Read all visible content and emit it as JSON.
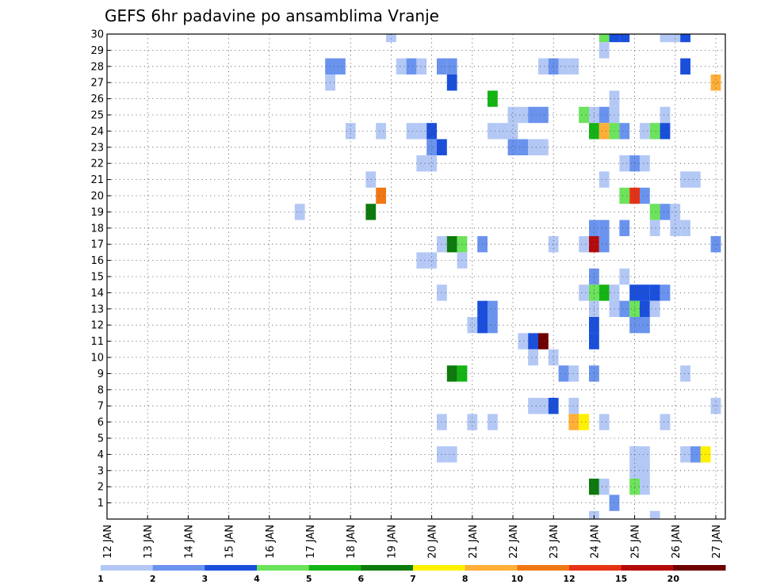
{
  "chart_data": {
    "type": "heatmap",
    "title": "GEFS 6hr padavine po ansamblima Vranje",
    "xlabel": "",
    "ylabel": "",
    "x_tick_labels": [
      "12 JAN",
      "13 JAN",
      "14 JAN",
      "15 JAN",
      "16 JAN",
      "17 JAN",
      "18 JAN",
      "19 JAN",
      "20 JAN",
      "21 JAN",
      "22 JAN",
      "23 JAN",
      "24 JAN",
      "25 JAN",
      "26 JAN",
      "27 JAN"
    ],
    "y_tick_labels": [
      "1",
      "2",
      "3",
      "4",
      "5",
      "6",
      "7",
      "8",
      "9",
      "10",
      "11",
      "12",
      "13",
      "14",
      "15",
      "16",
      "17",
      "18",
      "19",
      "20",
      "21",
      "22",
      "23",
      "24",
      "25",
      "26",
      "27",
      "28",
      "29",
      "30"
    ],
    "x_range_days": [
      12,
      27.25
    ],
    "members": 30,
    "step_hours": 6,
    "units": "mm / 6h",
    "legend_labels": [
      "1",
      "2",
      "3",
      "4",
      "5",
      "6",
      "7",
      "8",
      "10",
      "12",
      "15",
      "20"
    ],
    "color_levels": [
      {
        "level": 1,
        "color": "#b4c8f5"
      },
      {
        "level": 2,
        "color": "#6a93ee"
      },
      {
        "level": 3,
        "color": "#1a4fdc"
      },
      {
        "level": 4,
        "color": "#6be35a"
      },
      {
        "level": 5,
        "color": "#14b414"
      },
      {
        "level": 6,
        "color": "#0c7a0c"
      },
      {
        "level": 7,
        "color": "#fff000"
      },
      {
        "level": 8,
        "color": "#ffaf37"
      },
      {
        "level": 10,
        "color": "#f07814"
      },
      {
        "level": 12,
        "color": "#e63214"
      },
      {
        "level": 15,
        "color": "#b40a0a"
      },
      {
        "level": 20,
        "color": "#6e0000"
      }
    ],
    "cells": [
      {
        "m": 30,
        "t": 19.0,
        "v": 1
      },
      {
        "m": 30,
        "t": 24.25,
        "v": 4
      },
      {
        "m": 30,
        "t": 24.5,
        "v": 3
      },
      {
        "m": 30,
        "t": 24.75,
        "v": 3
      },
      {
        "m": 30,
        "t": 25.75,
        "v": 1
      },
      {
        "m": 30,
        "t": 26.0,
        "v": 1
      },
      {
        "m": 30,
        "t": 26.25,
        "v": 3
      },
      {
        "m": 29,
        "t": 24.25,
        "v": 1
      },
      {
        "m": 28,
        "t": 17.5,
        "v": 2
      },
      {
        "m": 28,
        "t": 17.75,
        "v": 2
      },
      {
        "m": 28,
        "t": 19.25,
        "v": 1
      },
      {
        "m": 28,
        "t": 19.5,
        "v": 2
      },
      {
        "m": 28,
        "t": 19.75,
        "v": 1
      },
      {
        "m": 28,
        "t": 20.25,
        "v": 2
      },
      {
        "m": 28,
        "t": 20.5,
        "v": 2
      },
      {
        "m": 28,
        "t": 22.75,
        "v": 1
      },
      {
        "m": 28,
        "t": 23.0,
        "v": 2
      },
      {
        "m": 28,
        "t": 23.25,
        "v": 1
      },
      {
        "m": 28,
        "t": 23.5,
        "v": 1
      },
      {
        "m": 28,
        "t": 26.25,
        "v": 3
      },
      {
        "m": 27,
        "t": 17.5,
        "v": 1
      },
      {
        "m": 27,
        "t": 20.5,
        "v": 3
      },
      {
        "m": 27,
        "t": 27.0,
        "v": 8
      },
      {
        "m": 26,
        "t": 21.5,
        "v": 5
      },
      {
        "m": 26,
        "t": 24.5,
        "v": 1
      },
      {
        "m": 25,
        "t": 22.0,
        "v": 1
      },
      {
        "m": 25,
        "t": 22.25,
        "v": 1
      },
      {
        "m": 25,
        "t": 22.5,
        "v": 2
      },
      {
        "m": 25,
        "t": 22.75,
        "v": 2
      },
      {
        "m": 25,
        "t": 23.75,
        "v": 4
      },
      {
        "m": 25,
        "t": 24.0,
        "v": 1
      },
      {
        "m": 25,
        "t": 24.25,
        "v": 2
      },
      {
        "m": 25,
        "t": 24.5,
        "v": 1
      },
      {
        "m": 25,
        "t": 25.75,
        "v": 1
      },
      {
        "m": 24,
        "t": 18.0,
        "v": 1
      },
      {
        "m": 24,
        "t": 18.75,
        "v": 1
      },
      {
        "m": 24,
        "t": 19.5,
        "v": 1
      },
      {
        "m": 24,
        "t": 19.75,
        "v": 1
      },
      {
        "m": 24,
        "t": 20.0,
        "v": 3
      },
      {
        "m": 24,
        "t": 21.5,
        "v": 1
      },
      {
        "m": 24,
        "t": 21.75,
        "v": 1
      },
      {
        "m": 24,
        "t": 22.0,
        "v": 1
      },
      {
        "m": 24,
        "t": 24.0,
        "v": 5
      },
      {
        "m": 24,
        "t": 24.25,
        "v": 8
      },
      {
        "m": 24,
        "t": 24.5,
        "v": 4
      },
      {
        "m": 24,
        "t": 24.75,
        "v": 2
      },
      {
        "m": 24,
        "t": 25.25,
        "v": 1
      },
      {
        "m": 24,
        "t": 25.5,
        "v": 4
      },
      {
        "m": 24,
        "t": 25.75,
        "v": 3
      },
      {
        "m": 23,
        "t": 20.0,
        "v": 2
      },
      {
        "m": 23,
        "t": 20.25,
        "v": 3
      },
      {
        "m": 23,
        "t": 22.0,
        "v": 2
      },
      {
        "m": 23,
        "t": 22.25,
        "v": 2
      },
      {
        "m": 23,
        "t": 22.5,
        "v": 1
      },
      {
        "m": 23,
        "t": 22.75,
        "v": 1
      },
      {
        "m": 22,
        "t": 19.75,
        "v": 1
      },
      {
        "m": 22,
        "t": 20.0,
        "v": 1
      },
      {
        "m": 22,
        "t": 24.75,
        "v": 1
      },
      {
        "m": 22,
        "t": 25.0,
        "v": 2
      },
      {
        "m": 22,
        "t": 25.25,
        "v": 1
      },
      {
        "m": 21,
        "t": 18.5,
        "v": 1
      },
      {
        "m": 21,
        "t": 24.25,
        "v": 1
      },
      {
        "m": 21,
        "t": 26.25,
        "v": 1
      },
      {
        "m": 21,
        "t": 26.5,
        "v": 1
      },
      {
        "m": 20,
        "t": 18.75,
        "v": 10
      },
      {
        "m": 20,
        "t": 24.75,
        "v": 4
      },
      {
        "m": 20,
        "t": 25.0,
        "v": 12
      },
      {
        "m": 20,
        "t": 25.25,
        "v": 2
      },
      {
        "m": 19,
        "t": 16.75,
        "v": 1
      },
      {
        "m": 19,
        "t": 18.5,
        "v": 6
      },
      {
        "m": 19,
        "t": 25.5,
        "v": 4
      },
      {
        "m": 19,
        "t": 25.75,
        "v": 2
      },
      {
        "m": 19,
        "t": 26.0,
        "v": 1
      },
      {
        "m": 18,
        "t": 24.0,
        "v": 2
      },
      {
        "m": 18,
        "t": 24.25,
        "v": 2
      },
      {
        "m": 18,
        "t": 24.75,
        "v": 2
      },
      {
        "m": 18,
        "t": 25.5,
        "v": 1
      },
      {
        "m": 18,
        "t": 26.0,
        "v": 1
      },
      {
        "m": 18,
        "t": 26.25,
        "v": 1
      },
      {
        "m": 17,
        "t": 20.25,
        "v": 1
      },
      {
        "m": 17,
        "t": 20.5,
        "v": 6
      },
      {
        "m": 17,
        "t": 20.75,
        "v": 4
      },
      {
        "m": 17,
        "t": 21.25,
        "v": 2
      },
      {
        "m": 17,
        "t": 23.0,
        "v": 1
      },
      {
        "m": 17,
        "t": 23.75,
        "v": 1
      },
      {
        "m": 17,
        "t": 24.0,
        "v": 15
      },
      {
        "m": 17,
        "t": 24.25,
        "v": 2
      },
      {
        "m": 17,
        "t": 27.0,
        "v": 2
      },
      {
        "m": 16,
        "t": 19.75,
        "v": 1
      },
      {
        "m": 16,
        "t": 20.0,
        "v": 1
      },
      {
        "m": 16,
        "t": 20.75,
        "v": 1
      },
      {
        "m": 15,
        "t": 24.0,
        "v": 2
      },
      {
        "m": 15,
        "t": 24.75,
        "v": 1
      },
      {
        "m": 14,
        "t": 20.25,
        "v": 1
      },
      {
        "m": 14,
        "t": 23.75,
        "v": 1
      },
      {
        "m": 14,
        "t": 24.0,
        "v": 4
      },
      {
        "m": 14,
        "t": 24.25,
        "v": 5
      },
      {
        "m": 14,
        "t": 24.5,
        "v": 1
      },
      {
        "m": 14,
        "t": 25.0,
        "v": 3
      },
      {
        "m": 14,
        "t": 25.25,
        "v": 3
      },
      {
        "m": 14,
        "t": 25.5,
        "v": 3
      },
      {
        "m": 14,
        "t": 25.75,
        "v": 2
      },
      {
        "m": 13,
        "t": 21.25,
        "v": 3
      },
      {
        "m": 13,
        "t": 21.5,
        "v": 2
      },
      {
        "m": 13,
        "t": 24.0,
        "v": 1
      },
      {
        "m": 13,
        "t": 24.5,
        "v": 1
      },
      {
        "m": 13,
        "t": 24.75,
        "v": 2
      },
      {
        "m": 13,
        "t": 25.0,
        "v": 4
      },
      {
        "m": 13,
        "t": 25.25,
        "v": 3
      },
      {
        "m": 13,
        "t": 25.5,
        "v": 1
      },
      {
        "m": 12,
        "t": 21.0,
        "v": 1
      },
      {
        "m": 12,
        "t": 21.25,
        "v": 3
      },
      {
        "m": 12,
        "t": 21.5,
        "v": 2
      },
      {
        "m": 12,
        "t": 24.0,
        "v": 3
      },
      {
        "m": 12,
        "t": 25.0,
        "v": 2
      },
      {
        "m": 12,
        "t": 25.25,
        "v": 2
      },
      {
        "m": 11,
        "t": 22.25,
        "v": 1
      },
      {
        "m": 11,
        "t": 22.5,
        "v": 3
      },
      {
        "m": 11,
        "t": 22.75,
        "v": 20
      },
      {
        "m": 11,
        "t": 24.0,
        "v": 3
      },
      {
        "m": 10,
        "t": 22.5,
        "v": 1
      },
      {
        "m": 10,
        "t": 23.0,
        "v": 1
      },
      {
        "m": 9,
        "t": 20.5,
        "v": 6
      },
      {
        "m": 9,
        "t": 20.75,
        "v": 5
      },
      {
        "m": 9,
        "t": 23.25,
        "v": 2
      },
      {
        "m": 9,
        "t": 23.5,
        "v": 1
      },
      {
        "m": 9,
        "t": 24.0,
        "v": 2
      },
      {
        "m": 9,
        "t": 26.25,
        "v": 1
      },
      {
        "m": 7,
        "t": 22.5,
        "v": 1
      },
      {
        "m": 7,
        "t": 22.75,
        "v": 1
      },
      {
        "m": 7,
        "t": 23.0,
        "v": 3
      },
      {
        "m": 7,
        "t": 23.5,
        "v": 1
      },
      {
        "m": 7,
        "t": 27.0,
        "v": 1
      },
      {
        "m": 6,
        "t": 20.25,
        "v": 1
      },
      {
        "m": 6,
        "t": 21.0,
        "v": 1
      },
      {
        "m": 6,
        "t": 21.5,
        "v": 1
      },
      {
        "m": 6,
        "t": 23.5,
        "v": 8
      },
      {
        "m": 6,
        "t": 23.75,
        "v": 7
      },
      {
        "m": 6,
        "t": 24.25,
        "v": 1
      },
      {
        "m": 6,
        "t": 25.75,
        "v": 1
      },
      {
        "m": 4,
        "t": 20.25,
        "v": 1
      },
      {
        "m": 4,
        "t": 20.5,
        "v": 1
      },
      {
        "m": 4,
        "t": 25.0,
        "v": 1
      },
      {
        "m": 4,
        "t": 25.25,
        "v": 1
      },
      {
        "m": 4,
        "t": 26.25,
        "v": 1
      },
      {
        "m": 4,
        "t": 26.5,
        "v": 2
      },
      {
        "m": 4,
        "t": 26.75,
        "v": 7
      },
      {
        "m": 3,
        "t": 25.0,
        "v": 1
      },
      {
        "m": 3,
        "t": 25.25,
        "v": 1
      },
      {
        "m": 2,
        "t": 24.0,
        "v": 6
      },
      {
        "m": 2,
        "t": 24.25,
        "v": 1
      },
      {
        "m": 2,
        "t": 25.0,
        "v": 4
      },
      {
        "m": 2,
        "t": 25.25,
        "v": 1
      },
      {
        "m": 1,
        "t": 24.5,
        "v": 2
      },
      {
        "m": 0,
        "t": 24.0,
        "v": 1
      },
      {
        "m": 0,
        "t": 25.5,
        "v": 1
      }
    ]
  }
}
